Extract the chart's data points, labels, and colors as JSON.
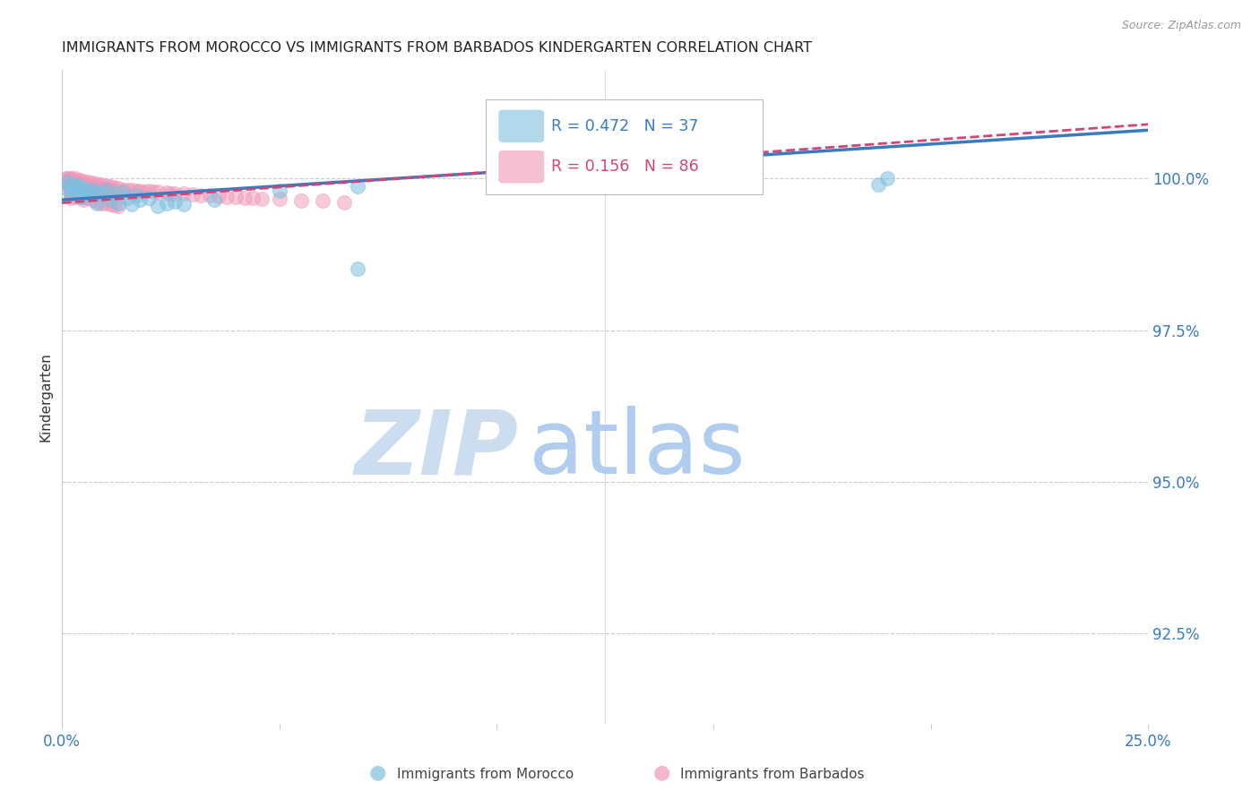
{
  "title": "IMMIGRANTS FROM MOROCCO VS IMMIGRANTS FROM BARBADOS KINDERGARTEN CORRELATION CHART",
  "source": "Source: ZipAtlas.com",
  "ylabel": "Kindergarten",
  "ytick_labels": [
    "92.5%",
    "95.0%",
    "97.5%",
    "100.0%"
  ],
  "ytick_values": [
    0.925,
    0.95,
    0.975,
    1.0
  ],
  "xmin": 0.0,
  "xmax": 0.25,
  "ymin": 0.91,
  "ymax": 1.018,
  "legend_morocco_R": "0.472",
  "legend_morocco_N": "37",
  "legend_barbados_R": "0.156",
  "legend_barbados_N": "86",
  "morocco_color": "#7fbfdf",
  "barbados_color": "#f097b8",
  "trendline_morocco_color": "#3a7abf",
  "trendline_barbados_color": "#d44477",
  "watermark_zip_color": "#ccddef",
  "watermark_atlas_color": "#b0ccee",
  "background_color": "#ffffff",
  "morocco_points_x": [
    0.001,
    0.001,
    0.002,
    0.002,
    0.003,
    0.003,
    0.003,
    0.004,
    0.004,
    0.005,
    0.005,
    0.006,
    0.006,
    0.007,
    0.008,
    0.008,
    0.009,
    0.01,
    0.011,
    0.012,
    0.013,
    0.014,
    0.015,
    0.016,
    0.017,
    0.018,
    0.02,
    0.022,
    0.024,
    0.026,
    0.028,
    0.035,
    0.05,
    0.068,
    0.188,
    0.19,
    0.068
  ],
  "morocco_points_y": [
    0.9985,
    0.9995,
    0.999,
    0.9975,
    0.9985,
    0.999,
    0.998,
    0.9988,
    0.997,
    0.9985,
    0.997,
    0.998,
    0.9975,
    0.9982,
    0.9978,
    0.996,
    0.9975,
    0.9982,
    0.9965,
    0.9975,
    0.996,
    0.9978,
    0.9968,
    0.9958,
    0.9972,
    0.9965,
    0.9968,
    0.9955,
    0.996,
    0.9962,
    0.9958,
    0.9965,
    0.998,
    0.9988,
    0.999,
    1.0,
    0.9852
  ],
  "barbados_points_x": [
    0.001,
    0.001,
    0.001,
    0.001,
    0.001,
    0.002,
    0.002,
    0.002,
    0.002,
    0.002,
    0.002,
    0.003,
    0.003,
    0.003,
    0.003,
    0.003,
    0.003,
    0.004,
    0.004,
    0.004,
    0.004,
    0.004,
    0.005,
    0.005,
    0.005,
    0.005,
    0.006,
    0.006,
    0.006,
    0.007,
    0.007,
    0.007,
    0.008,
    0.008,
    0.008,
    0.009,
    0.009,
    0.01,
    0.01,
    0.011,
    0.011,
    0.012,
    0.012,
    0.013,
    0.014,
    0.015,
    0.016,
    0.017,
    0.018,
    0.019,
    0.02,
    0.021,
    0.022,
    0.024,
    0.025,
    0.026,
    0.028,
    0.03,
    0.032,
    0.034,
    0.036,
    0.038,
    0.04,
    0.042,
    0.044,
    0.046,
    0.05,
    0.055,
    0.06,
    0.065,
    0.002,
    0.002,
    0.002,
    0.003,
    0.003,
    0.004,
    0.005,
    0.005,
    0.006,
    0.007,
    0.008,
    0.009,
    0.01,
    0.011,
    0.012,
    0.013
  ],
  "barbados_points_y": [
    1.0,
    1.0,
    0.9998,
    0.9995,
    0.999,
    1.0,
    1.0,
    0.9995,
    0.9992,
    0.999,
    0.9985,
    1.0,
    0.9998,
    0.9994,
    0.999,
    0.9985,
    0.998,
    0.9998,
    0.9994,
    0.999,
    0.9985,
    0.998,
    0.9996,
    0.9992,
    0.9988,
    0.9982,
    0.9995,
    0.999,
    0.9985,
    0.9993,
    0.9988,
    0.9982,
    0.9992,
    0.9988,
    0.9983,
    0.999,
    0.9985,
    0.9989,
    0.9984,
    0.9987,
    0.9982,
    0.9986,
    0.998,
    0.9984,
    0.9982,
    0.9981,
    0.9982,
    0.998,
    0.998,
    0.9979,
    0.998,
    0.9978,
    0.9978,
    0.9977,
    0.9976,
    0.9976,
    0.9975,
    0.9974,
    0.9973,
    0.9972,
    0.9971,
    0.997,
    0.9969,
    0.9968,
    0.9968,
    0.9967,
    0.9966,
    0.9964,
    0.9963,
    0.9961,
    0.9978,
    0.9972,
    0.9968,
    0.9975,
    0.997,
    0.9972,
    0.997,
    0.9965,
    0.9968,
    0.9965,
    0.9962,
    0.996,
    0.996,
    0.9958,
    0.9956,
    0.9955
  ]
}
